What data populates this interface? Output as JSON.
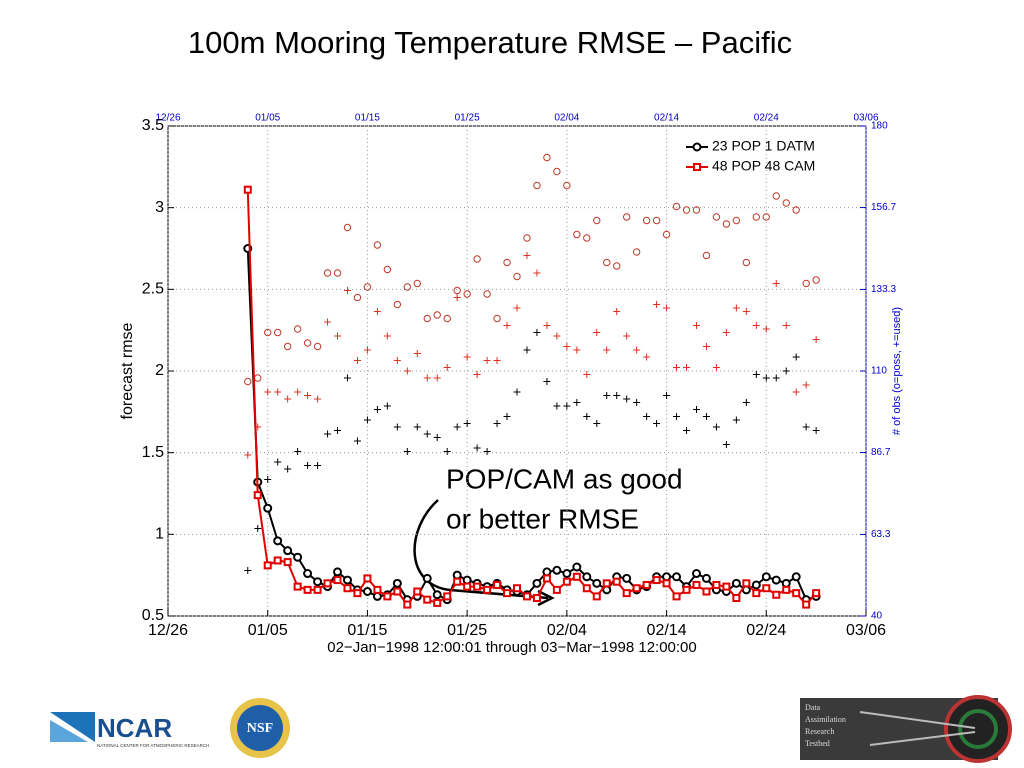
{
  "chart_data": {
    "type": "line",
    "title": "100m Mooring Temperature RMSE – Pacific",
    "x_label": "02−Jan−1998 12:00:01 through 03−Mar−1998 12:00:00",
    "y_label": "forecast rmse",
    "y2_label": "# of obs (o=poss, +=used)",
    "x": [
      "01/03",
      "01/04",
      "01/05",
      "01/06",
      "01/07",
      "01/08",
      "01/09",
      "01/10",
      "01/11",
      "01/12",
      "01/13",
      "01/14",
      "01/15",
      "01/16",
      "01/17",
      "01/18",
      "01/19",
      "01/20",
      "01/21",
      "01/22",
      "01/23",
      "01/24",
      "01/25",
      "01/26",
      "01/27",
      "01/28",
      "01/29",
      "01/30",
      "01/31",
      "02/01",
      "02/02",
      "02/03",
      "02/04",
      "02/05",
      "02/06",
      "02/07",
      "02/08",
      "02/09",
      "02/10",
      "02/11",
      "02/12",
      "02/13",
      "02/14",
      "02/15",
      "02/16",
      "02/17",
      "02/18",
      "02/19",
      "02/20",
      "02/21",
      "02/22",
      "02/23",
      "02/24",
      "02/25",
      "02/26",
      "02/27",
      "02/28",
      "03/01"
    ],
    "xlim": [
      "12/26",
      "03/06"
    ],
    "xticks": [
      "12/26",
      "01/05",
      "01/15",
      "01/25",
      "02/04",
      "02/14",
      "02/24",
      "03/06"
    ],
    "ylim": [
      0.5,
      3.5
    ],
    "yticks": [
      0.5,
      1,
      1.5,
      2,
      2.5,
      3,
      3.5
    ],
    "y2lim": [
      40,
      180
    ],
    "y2ticks": [
      40,
      63.3,
      86.7,
      110,
      133.3,
      156.7,
      180
    ],
    "grid": true,
    "legend": "upper right",
    "series": [
      {
        "name": "23 POP 1 DATM",
        "color": "#000000",
        "marker": "circle",
        "values": [
          2.75,
          1.32,
          1.16,
          0.96,
          0.9,
          0.86,
          0.76,
          0.71,
          0.68,
          0.77,
          0.72,
          0.66,
          0.65,
          0.62,
          0.63,
          0.7,
          0.6,
          0.62,
          0.73,
          0.63,
          0.6,
          0.75,
          0.72,
          0.7,
          0.68,
          0.7,
          0.66,
          0.65,
          0.63,
          0.7,
          0.77,
          0.78,
          0.76,
          0.8,
          0.74,
          0.7,
          0.66,
          0.74,
          0.73,
          0.66,
          0.68,
          0.74,
          0.74,
          0.74,
          0.68,
          0.76,
          0.73,
          0.66,
          0.65,
          0.7,
          0.66,
          0.69,
          0.74,
          0.72,
          0.7,
          0.74,
          0.6,
          0.62
        ]
      },
      {
        "name": "48 POP 48 CAM",
        "color": "#e00000",
        "marker": "square",
        "values": [
          3.11,
          1.24,
          0.81,
          0.84,
          0.83,
          0.68,
          0.66,
          0.66,
          0.7,
          0.72,
          0.67,
          0.64,
          0.73,
          0.66,
          0.62,
          0.65,
          0.57,
          0.65,
          0.6,
          0.58,
          0.62,
          0.71,
          0.68,
          0.68,
          0.66,
          0.69,
          0.64,
          0.67,
          0.62,
          0.61,
          0.73,
          0.66,
          0.71,
          0.74,
          0.67,
          0.62,
          0.7,
          0.71,
          0.64,
          0.67,
          0.69,
          0.72,
          0.7,
          0.62,
          0.66,
          0.69,
          0.65,
          0.69,
          0.68,
          0.61,
          0.7,
          0.64,
          0.67,
          0.63,
          0.66,
          0.64,
          0.57,
          0.64
        ]
      }
    ],
    "obs_series": [
      {
        "color": "#c0392b",
        "marker": "o",
        "axis": "y2",
        "values": [
          107,
          108,
          121,
          121,
          117,
          122,
          118,
          117,
          138,
          138,
          151,
          131,
          134,
          146,
          139,
          129,
          134,
          135,
          125,
          126,
          125,
          133,
          132,
          142,
          132,
          125,
          141,
          137,
          148,
          163,
          171,
          167,
          163,
          149,
          148,
          153,
          141,
          140,
          154,
          144,
          153,
          153,
          149,
          157,
          156,
          156,
          143,
          154,
          152,
          153,
          141,
          154,
          154,
          160,
          158,
          156,
          135,
          136
        ]
      },
      {
        "color": "#000000",
        "marker": "+",
        "axis": "y2",
        "values": [
          53,
          65,
          79,
          84,
          82,
          87,
          83,
          83,
          92,
          93,
          108,
          90,
          96,
          99,
          100,
          94,
          87,
          94,
          92,
          91,
          87,
          94,
          95,
          88,
          87,
          95,
          97,
          104,
          116,
          121,
          107,
          100,
          100,
          101,
          97,
          95,
          103,
          103,
          102,
          101,
          97,
          95,
          103,
          97,
          93,
          99,
          97,
          94,
          89,
          96,
          101,
          109,
          108,
          108,
          110,
          114,
          94,
          93
        ]
      },
      {
        "color": "#e03020",
        "marker": "+",
        "axis": "y2",
        "values": [
          86,
          94,
          104,
          104,
          102,
          104,
          103,
          102,
          124,
          120,
          133,
          113,
          116,
          127,
          120,
          113,
          110,
          115,
          108,
          108,
          111,
          131,
          114,
          109,
          113,
          113,
          123,
          128,
          143,
          138,
          123,
          120,
          117,
          116,
          109,
          121,
          116,
          127,
          120,
          116,
          114,
          129,
          128,
          111,
          111,
          123,
          117,
          111,
          121,
          128,
          127,
          123,
          122,
          135,
          123,
          104,
          106,
          119
        ]
      }
    ],
    "annotation": [
      "POP/CAM as good",
      "or better RMSE"
    ]
  },
  "logos": {
    "ncar": "NCAR",
    "ncar_sub": "NATIONAL CENTER FOR ATMOSPHERIC RESEARCH",
    "nsf": "NSF",
    "dart": [
      "Data",
      "Assimilation",
      "Research",
      "Testbed"
    ]
  }
}
